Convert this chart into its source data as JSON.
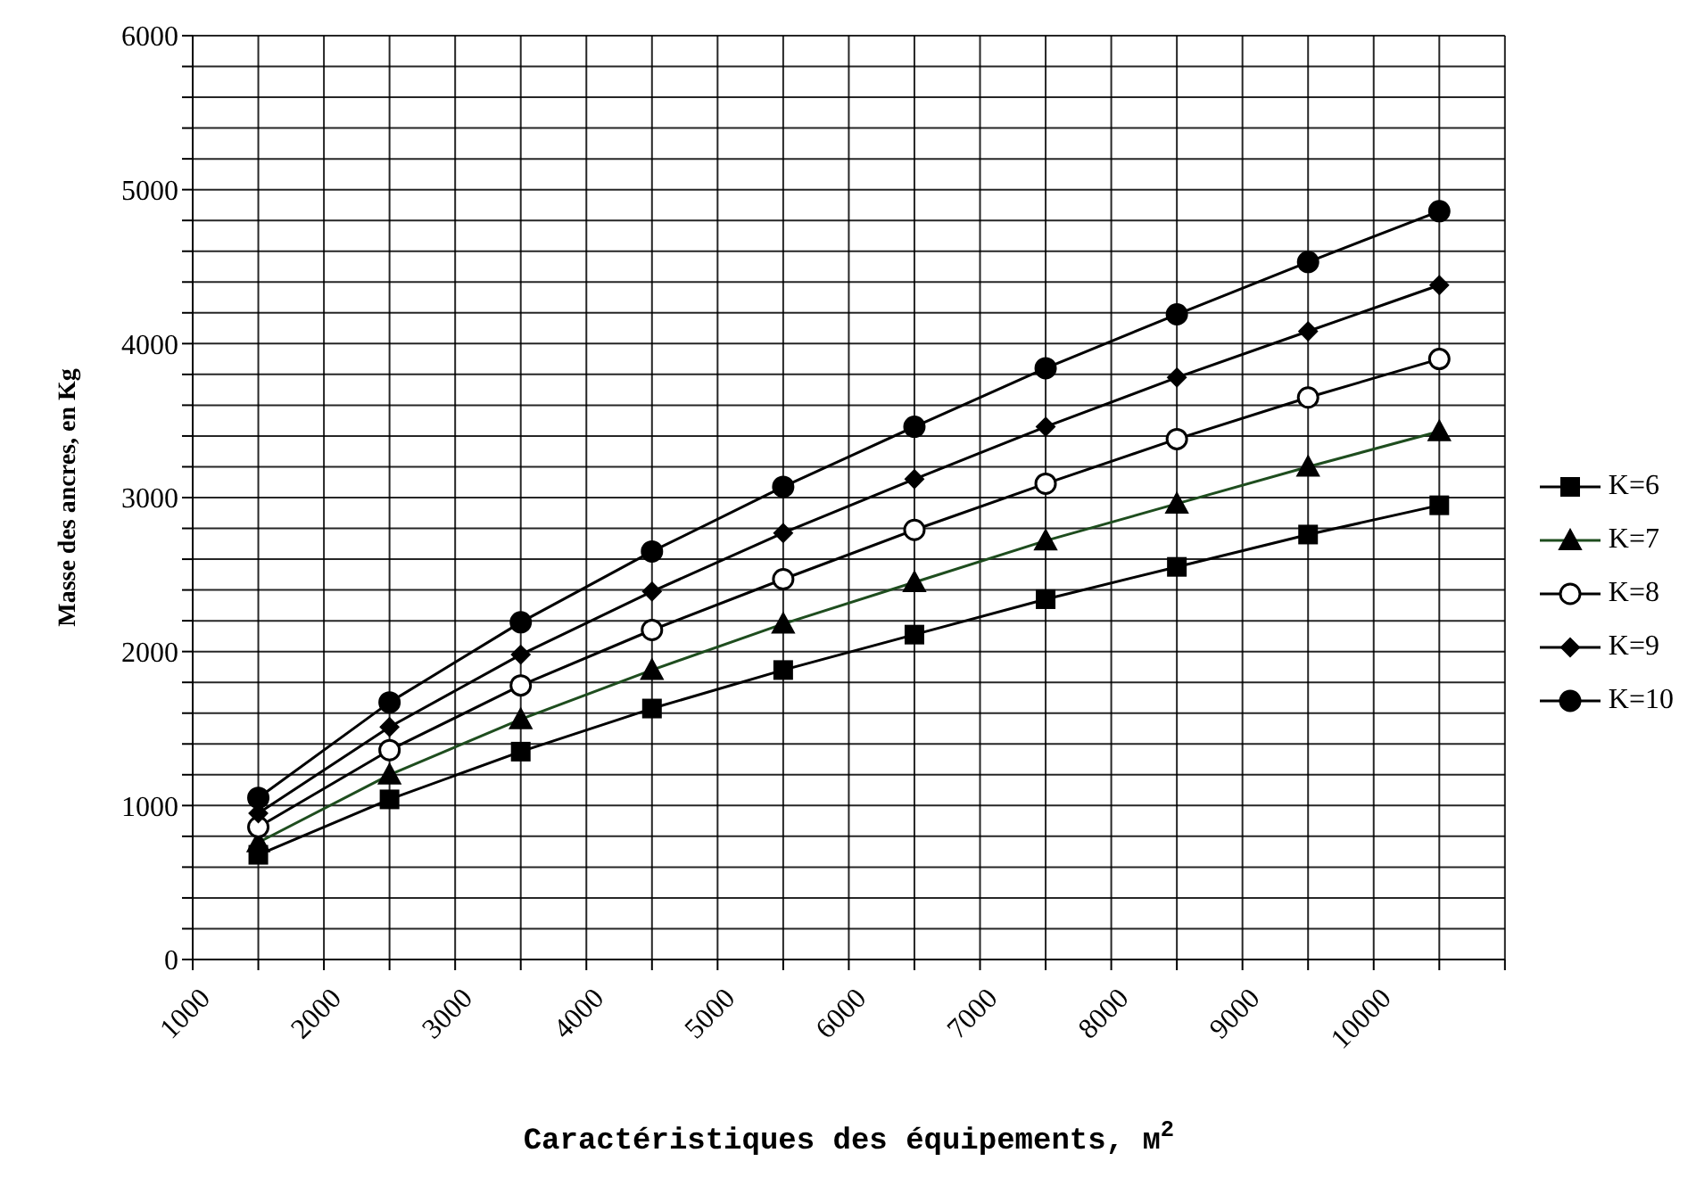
{
  "chart_data": {
    "type": "line",
    "xlabel": "Caractéristiques des équipements, м$^{2}$",
    "ylabel": "Masse des ancres, en Kg",
    "x": [
      1500,
      2500,
      3500,
      4500,
      5500,
      6500,
      7500,
      8500,
      9500,
      10500
    ],
    "xlim": [
      1000,
      11000
    ],
    "xticks": [
      1000,
      {
        "value": 1500,
        "label": null
      },
      2000,
      {
        "value": 2500,
        "label": null
      },
      3000,
      {
        "value": 3500,
        "label": null
      },
      4000,
      {
        "value": 4500,
        "label": null
      },
      5000,
      {
        "value": 5500,
        "label": null
      },
      6000,
      {
        "value": 6500,
        "label": null
      },
      7000,
      {
        "value": 7500,
        "label": null
      },
      8000,
      {
        "value": 8500,
        "label": null
      },
      9000,
      {
        "value": 9500,
        "label": null
      },
      10000,
      {
        "value": 10500,
        "label": null
      },
      {
        "value": 11000,
        "label": null
      }
    ],
    "ylim": [
      0,
      6000
    ],
    "yticks": [
      0,
      {
        "value": 200,
        "label": null
      },
      {
        "value": 400,
        "label": null
      },
      {
        "value": 600,
        "label": null
      },
      {
        "value": 800,
        "label": null
      },
      1000,
      {
        "value": 1200,
        "label": null
      },
      {
        "value": 1400,
        "label": null
      },
      {
        "value": 1600,
        "label": null
      },
      {
        "value": 1800,
        "label": null
      },
      2000,
      {
        "value": 2200,
        "label": null
      },
      {
        "value": 2400,
        "label": null
      },
      {
        "value": 2600,
        "label": null
      },
      {
        "value": 2800,
        "label": null
      },
      3000,
      {
        "value": 3200,
        "label": null
      },
      {
        "value": 3400,
        "label": null
      },
      {
        "value": 3600,
        "label": null
      },
      {
        "value": 3800,
        "label": null
      },
      4000,
      {
        "value": 4200,
        "label": null
      },
      {
        "value": 4400,
        "label": null
      },
      {
        "value": 4600,
        "label": null
      },
      {
        "value": 4800,
        "label": null
      },
      5000,
      {
        "value": 5200,
        "label": null
      },
      {
        "value": 5400,
        "label": null
      },
      {
        "value": 5600,
        "label": null
      },
      {
        "value": 5800,
        "label": null
      },
      6000
    ],
    "grid": true,
    "legend": "right",
    "line_style": "solid",
    "series": [
      {
        "name": "K=6",
        "color": "#000000",
        "marker": "square",
        "values": [
          680,
          1040,
          1350,
          1630,
          1880,
          2110,
          2340,
          2550,
          2760,
          2950
        ]
      },
      {
        "name": "K=7",
        "color": "#1e4d1e",
        "colors": [
          "#000000",
          "#000000",
          "#000000",
          "#000000",
          "#000000",
          "#000000",
          "#000000",
          "#000000",
          "#000000",
          "#000000"
        ],
        "marker": "triangle",
        "values": [
          760,
          1200,
          1560,
          1880,
          2180,
          2450,
          2720,
          2960,
          3200,
          3430
        ]
      },
      {
        "name": "K=8",
        "color": "#000000",
        "marker": "circle",
        "colors": [
          "#ffffff",
          "#ffffff",
          "#ffffff",
          "#ffffff",
          "#ffffff",
          "#ffffff",
          "#ffffff",
          "#ffffff",
          "#ffffff",
          "#ffffff"
        ],
        "values": [
          860,
          1360,
          1780,
          2140,
          2470,
          2790,
          3090,
          3380,
          3650,
          3900
        ]
      },
      {
        "name": "K=9",
        "color": "#000000",
        "marker": "diamond",
        "values": [
          950,
          1510,
          1980,
          2390,
          2770,
          3120,
          3460,
          3780,
          4080,
          4380
        ]
      },
      {
        "name": "K=10",
        "color": "#000000",
        "marker": "circle",
        "values": [
          1050,
          1670,
          2190,
          2650,
          3070,
          3460,
          3840,
          4190,
          4530,
          4860
        ]
      }
    ]
  }
}
